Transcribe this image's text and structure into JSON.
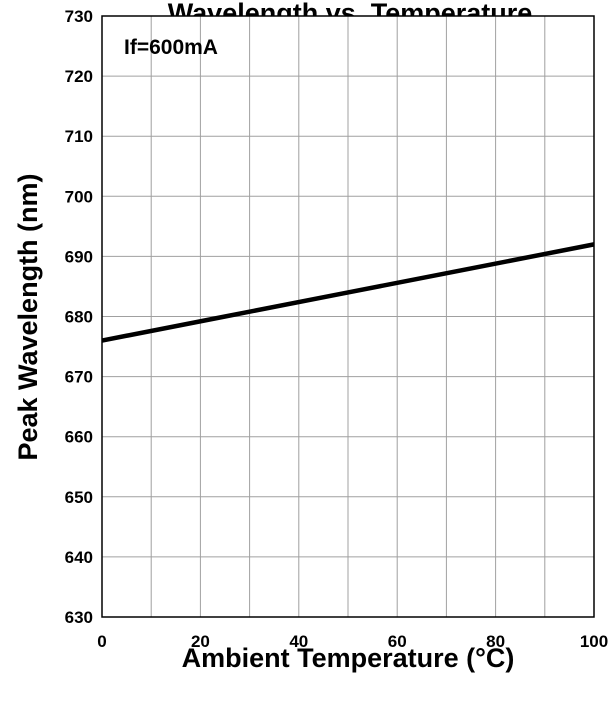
{
  "chart_data": {
    "type": "line",
    "title": "Wavelength vs. Temperature",
    "xlabel": "Ambient Temperature (°C)",
    "ylabel": "Peak Wavelength (nm)",
    "xlim": [
      0,
      100
    ],
    "ylim": [
      630,
      730
    ],
    "xticks": [
      0,
      20,
      40,
      60,
      80,
      100
    ],
    "yticks": [
      630,
      640,
      650,
      660,
      670,
      680,
      690,
      700,
      710,
      720,
      730
    ],
    "x_gridlines": [
      0,
      10,
      20,
      30,
      40,
      50,
      60,
      70,
      80,
      90,
      100
    ],
    "grid": true,
    "annotation": "If=600mA",
    "series": [
      {
        "x": [
          0,
          25,
          50,
          75,
          100
        ],
        "y": [
          676,
          680,
          684,
          688,
          692
        ]
      }
    ],
    "colors": {
      "line": "#000000",
      "grid": "#a0a0a0",
      "axis": "#000000"
    }
  }
}
